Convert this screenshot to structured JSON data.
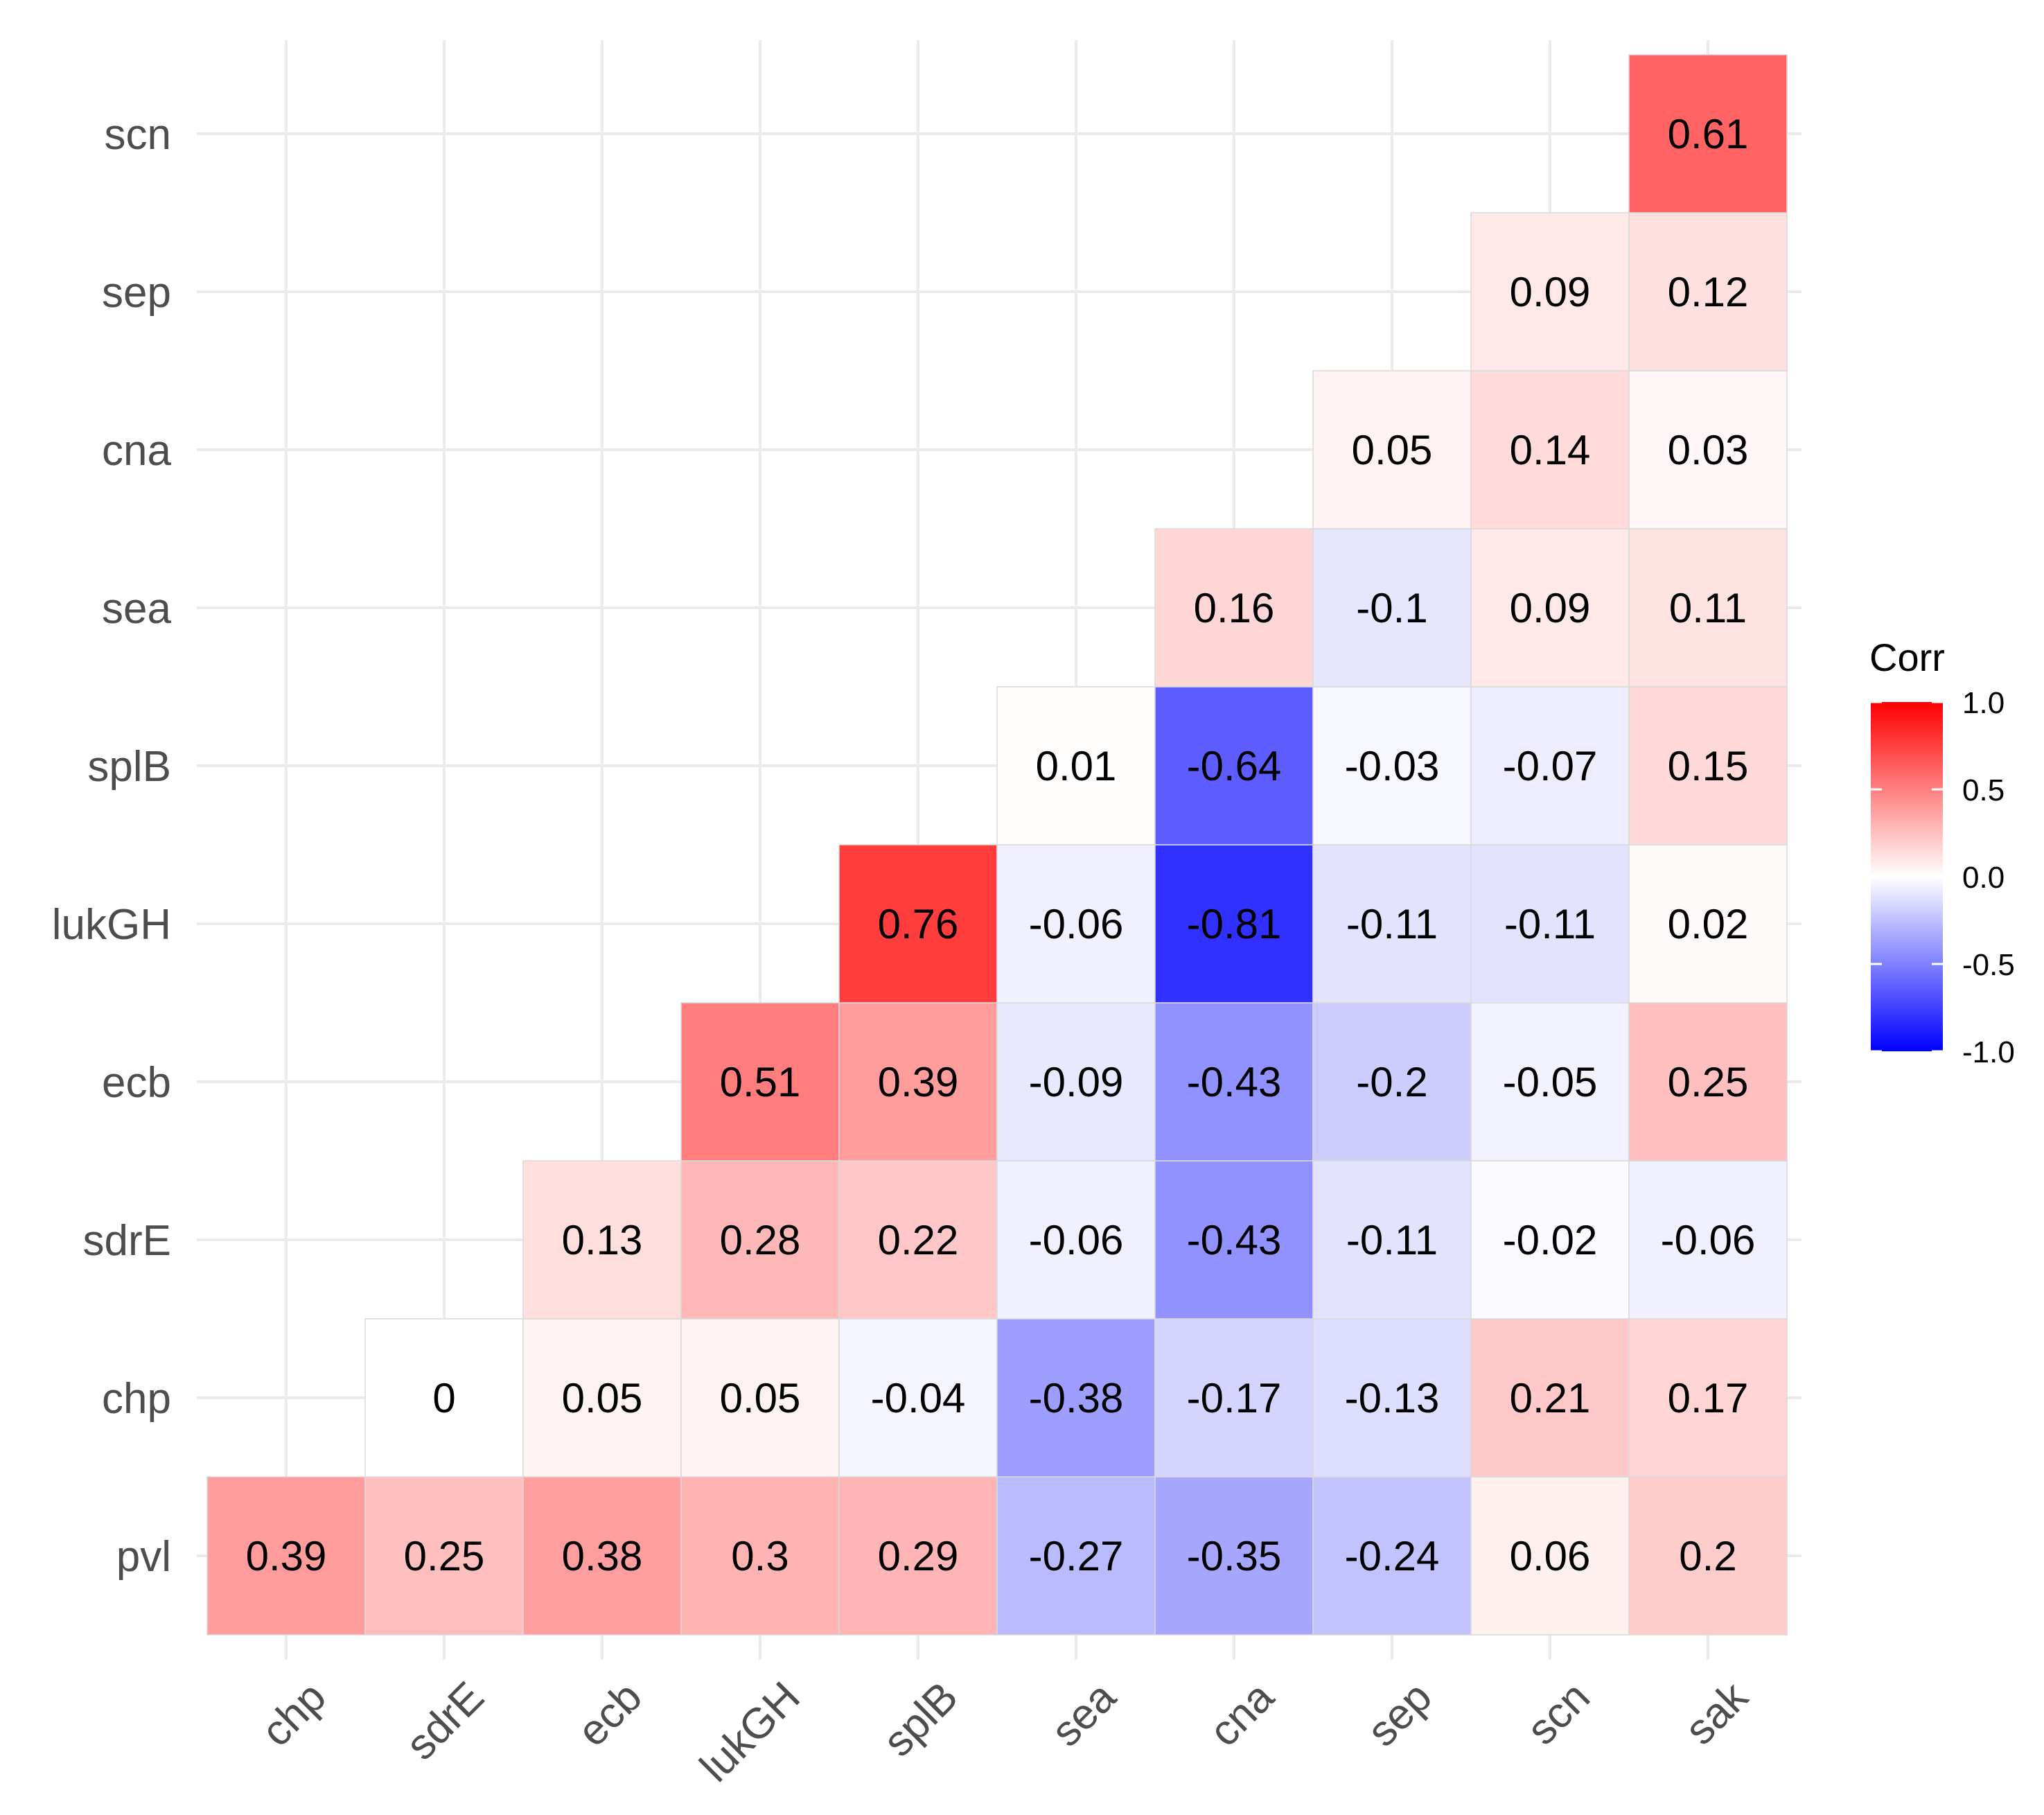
{
  "chart_data": {
    "type": "heatmap",
    "x_categories": [
      "chp",
      "sdrE",
      "ecb",
      "lukGH",
      "splB",
      "sea",
      "cna",
      "sep",
      "scn",
      "sak"
    ],
    "y_categories": [
      "pvl",
      "chp",
      "sdrE",
      "ecb",
      "lukGH",
      "splB",
      "sea",
      "cna",
      "sep",
      "scn"
    ],
    "cells": [
      {
        "x": "chp",
        "y": "pvl",
        "value": 0.39,
        "label": "0.39"
      },
      {
        "x": "sdrE",
        "y": "pvl",
        "value": 0.25,
        "label": "0.25"
      },
      {
        "x": "ecb",
        "y": "pvl",
        "value": 0.38,
        "label": "0.38"
      },
      {
        "x": "lukGH",
        "y": "pvl",
        "value": 0.3,
        "label": "0.3"
      },
      {
        "x": "splB",
        "y": "pvl",
        "value": 0.29,
        "label": "0.29"
      },
      {
        "x": "sea",
        "y": "pvl",
        "value": -0.27,
        "label": "-0.27"
      },
      {
        "x": "cna",
        "y": "pvl",
        "value": -0.35,
        "label": "-0.35"
      },
      {
        "x": "sep",
        "y": "pvl",
        "value": -0.24,
        "label": "-0.24"
      },
      {
        "x": "scn",
        "y": "pvl",
        "value": 0.06,
        "label": "0.06"
      },
      {
        "x": "sak",
        "y": "pvl",
        "value": 0.2,
        "label": "0.2"
      },
      {
        "x": "sdrE",
        "y": "chp",
        "value": 0,
        "label": "0"
      },
      {
        "x": "ecb",
        "y": "chp",
        "value": 0.05,
        "label": "0.05"
      },
      {
        "x": "lukGH",
        "y": "chp",
        "value": 0.05,
        "label": "0.05"
      },
      {
        "x": "splB",
        "y": "chp",
        "value": -0.04,
        "label": "-0.04"
      },
      {
        "x": "sea",
        "y": "chp",
        "value": -0.38,
        "label": "-0.38"
      },
      {
        "x": "cna",
        "y": "chp",
        "value": -0.17,
        "label": "-0.17"
      },
      {
        "x": "sep",
        "y": "chp",
        "value": -0.13,
        "label": "-0.13"
      },
      {
        "x": "scn",
        "y": "chp",
        "value": 0.21,
        "label": "0.21"
      },
      {
        "x": "sak",
        "y": "chp",
        "value": 0.17,
        "label": "0.17"
      },
      {
        "x": "ecb",
        "y": "sdrE",
        "value": 0.13,
        "label": "0.13"
      },
      {
        "x": "lukGH",
        "y": "sdrE",
        "value": 0.28,
        "label": "0.28"
      },
      {
        "x": "splB",
        "y": "sdrE",
        "value": 0.22,
        "label": "0.22"
      },
      {
        "x": "sea",
        "y": "sdrE",
        "value": -0.06,
        "label": "-0.06"
      },
      {
        "x": "cna",
        "y": "sdrE",
        "value": -0.43,
        "label": "-0.43"
      },
      {
        "x": "sep",
        "y": "sdrE",
        "value": -0.11,
        "label": "-0.11"
      },
      {
        "x": "scn",
        "y": "sdrE",
        "value": -0.02,
        "label": "-0.02"
      },
      {
        "x": "sak",
        "y": "sdrE",
        "value": -0.06,
        "label": "-0.06"
      },
      {
        "x": "lukGH",
        "y": "ecb",
        "value": 0.51,
        "label": "0.51"
      },
      {
        "x": "splB",
        "y": "ecb",
        "value": 0.39,
        "label": "0.39"
      },
      {
        "x": "sea",
        "y": "ecb",
        "value": -0.09,
        "label": "-0.09"
      },
      {
        "x": "cna",
        "y": "ecb",
        "value": -0.43,
        "label": "-0.43"
      },
      {
        "x": "sep",
        "y": "ecb",
        "value": -0.2,
        "label": "-0.2"
      },
      {
        "x": "scn",
        "y": "ecb",
        "value": -0.05,
        "label": "-0.05"
      },
      {
        "x": "sak",
        "y": "ecb",
        "value": 0.25,
        "label": "0.25"
      },
      {
        "x": "splB",
        "y": "lukGH",
        "value": 0.76,
        "label": "0.76"
      },
      {
        "x": "sea",
        "y": "lukGH",
        "value": -0.06,
        "label": "-0.06"
      },
      {
        "x": "cna",
        "y": "lukGH",
        "value": -0.81,
        "label": "-0.81"
      },
      {
        "x": "sep",
        "y": "lukGH",
        "value": -0.11,
        "label": "-0.11"
      },
      {
        "x": "scn",
        "y": "lukGH",
        "value": -0.11,
        "label": "-0.11"
      },
      {
        "x": "sak",
        "y": "lukGH",
        "value": 0.02,
        "label": "0.02"
      },
      {
        "x": "sea",
        "y": "splB",
        "value": 0.01,
        "label": "0.01"
      },
      {
        "x": "cna",
        "y": "splB",
        "value": -0.64,
        "label": "-0.64"
      },
      {
        "x": "sep",
        "y": "splB",
        "value": -0.03,
        "label": "-0.03"
      },
      {
        "x": "scn",
        "y": "splB",
        "value": -0.07,
        "label": "-0.07"
      },
      {
        "x": "sak",
        "y": "splB",
        "value": 0.15,
        "label": "0.15"
      },
      {
        "x": "cna",
        "y": "sea",
        "value": 0.16,
        "label": "0.16"
      },
      {
        "x": "sep",
        "y": "sea",
        "value": -0.1,
        "label": "-0.1"
      },
      {
        "x": "scn",
        "y": "sea",
        "value": 0.09,
        "label": "0.09"
      },
      {
        "x": "sak",
        "y": "sea",
        "value": 0.11,
        "label": "0.11"
      },
      {
        "x": "sep",
        "y": "cna",
        "value": 0.05,
        "label": "0.05"
      },
      {
        "x": "scn",
        "y": "cna",
        "value": 0.14,
        "label": "0.14"
      },
      {
        "x": "sak",
        "y": "cna",
        "value": 0.03,
        "label": "0.03"
      },
      {
        "x": "scn",
        "y": "sep",
        "value": 0.09,
        "label": "0.09"
      },
      {
        "x": "sak",
        "y": "sep",
        "value": 0.12,
        "label": "0.12"
      },
      {
        "x": "sak",
        "y": "scn",
        "value": 0.61,
        "label": "0.61"
      }
    ],
    "color_scale": {
      "low": "#0000ff",
      "mid": "#ffffff",
      "high": "#ff0000",
      "min": -1.0,
      "max": 1.0
    },
    "legend": {
      "title": "Corr",
      "ticks": [
        "1.0",
        "0.5",
        "0.0",
        "-0.5",
        "-1.0"
      ],
      "tick_values": [
        1.0,
        0.5,
        0.0,
        -0.5,
        -1.0
      ],
      "placement": "right"
    },
    "grid": true,
    "title": "",
    "xlabel": "",
    "ylabel": ""
  }
}
